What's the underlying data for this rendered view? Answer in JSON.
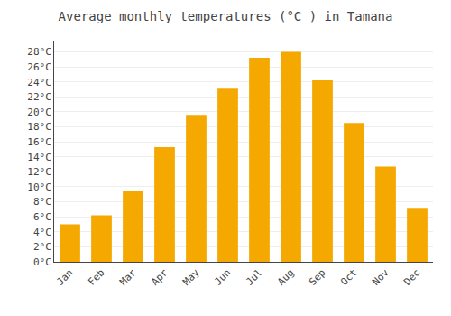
{
  "chart_data": {
    "type": "bar",
    "title": "Average monthly temperatures (°C ) in Tamana",
    "categories": [
      "Jan",
      "Feb",
      "Mar",
      "Apr",
      "May",
      "Jun",
      "Jul",
      "Aug",
      "Sep",
      "Oct",
      "Nov",
      "Dec"
    ],
    "values": [
      5.0,
      6.2,
      9.5,
      15.3,
      19.6,
      23.1,
      27.2,
      28.0,
      24.2,
      18.5,
      12.7,
      7.2
    ],
    "color": "#F5A800",
    "ylim": [
      0,
      29.5
    ],
    "yticks": [
      {
        "value": 0,
        "label": "0°C"
      },
      {
        "value": 2,
        "label": "2°C"
      },
      {
        "value": 4,
        "label": "4°C"
      },
      {
        "value": 6,
        "label": "6°C"
      },
      {
        "value": 8,
        "label": "8°C"
      },
      {
        "value": 10,
        "label": "10°C"
      },
      {
        "value": 12,
        "label": "12°C"
      },
      {
        "value": 14,
        "label": "14°C"
      },
      {
        "value": 16,
        "label": "16°C"
      },
      {
        "value": 18,
        "label": "18°C"
      },
      {
        "value": 20,
        "label": "20°C"
      },
      {
        "value": 22,
        "label": "22°C"
      },
      {
        "value": 24,
        "label": "24°C"
      },
      {
        "value": 26,
        "label": "26°C"
      },
      {
        "value": 28,
        "label": "28°C"
      }
    ],
    "grid": true
  }
}
